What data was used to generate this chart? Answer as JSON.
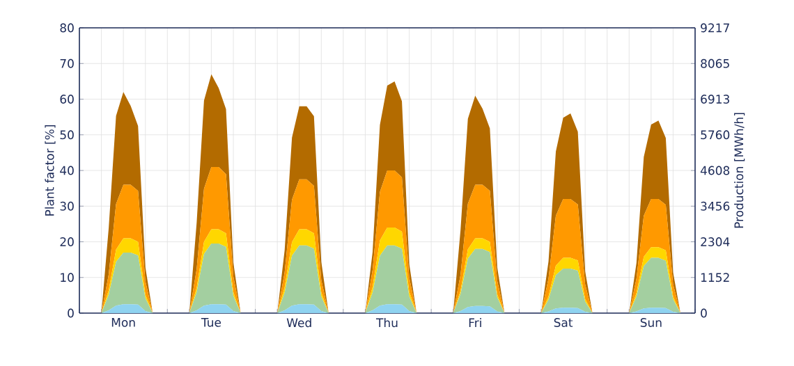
{
  "chart_data": {
    "type": "area",
    "stacked": true,
    "grid": true,
    "ylabel": "Plant factor [%]",
    "y2label": "Production [MWh/h]",
    "categories": [
      null,
      null,
      null,
      null,
      null,
      null,
      "Mon",
      null,
      null,
      null,
      null,
      null,
      null,
      null,
      null,
      null,
      null,
      null,
      "Tue",
      null,
      null,
      null,
      null,
      null,
      null,
      null,
      null,
      null,
      null,
      null,
      "Wed",
      null,
      null,
      null,
      null,
      null,
      null,
      null,
      null,
      null,
      null,
      null,
      "Thu",
      null,
      null,
      null,
      null,
      null,
      null,
      null,
      null,
      null,
      null,
      null,
      "Fri",
      null,
      null,
      null,
      null,
      null,
      null,
      null,
      null,
      null,
      null,
      null,
      "Sat",
      null,
      null,
      null,
      null,
      null,
      null,
      null,
      null,
      null,
      null,
      null,
      "Sun",
      null,
      null,
      null,
      null,
      null
    ],
    "ylim": [
      0,
      80
    ],
    "yticks": [
      0,
      10,
      20,
      30,
      40,
      50,
      60,
      70,
      80
    ],
    "y2lim": [
      0,
      9217
    ],
    "y2ticks": [
      0,
      1152,
      2304,
      3456,
      4608,
      5760,
      6913,
      8065,
      9217
    ],
    "series": [
      {
        "color": "#8fd3f0",
        "values": [
          0,
          0,
          0,
          0,
          0.8,
          2.1,
          2.5,
          2.5,
          2.4,
          0.6,
          0,
          0,
          0,
          0,
          0,
          0,
          0.8,
          2.1,
          2.5,
          2.5,
          2.4,
          0.6,
          0,
          0,
          0,
          0,
          0,
          0,
          0.8,
          2.1,
          2.5,
          2.5,
          2.4,
          0.6,
          0,
          0,
          0,
          0,
          0,
          0,
          0.8,
          2.1,
          2.5,
          2.5,
          2.4,
          0.6,
          0,
          0,
          0,
          0,
          0,
          0,
          0.6,
          1.7,
          2,
          2,
          1.9,
          0.5,
          0,
          0,
          0,
          0,
          0,
          0,
          0.5,
          1.3,
          1.5,
          1.5,
          1.4,
          0.4,
          0,
          0,
          0,
          0,
          0,
          0,
          0.5,
          1.3,
          1.5,
          1.5,
          1.4,
          0.4,
          0,
          0
        ]
      },
      {
        "color": "#a3cfa0",
        "values": [
          0,
          0,
          0,
          0,
          4.4,
          12.3,
          14.5,
          14.5,
          13.8,
          3.6,
          0,
          0,
          0,
          0,
          0,
          0,
          5.1,
          14.5,
          17,
          17,
          16.2,
          4.3,
          0,
          0,
          0,
          0,
          0,
          0,
          5,
          14,
          16.5,
          16.5,
          15.7,
          4.1,
          0,
          0,
          0,
          0,
          0,
          0,
          5,
          14,
          16.5,
          16.5,
          15.7,
          4.1,
          0,
          0,
          0,
          0,
          0,
          0,
          4.8,
          13.6,
          16,
          16,
          15.2,
          4,
          0,
          0,
          0,
          0,
          0,
          0,
          3.3,
          9.4,
          11,
          11,
          10.5,
          2.8,
          0,
          0,
          0,
          0,
          0,
          0,
          4.2,
          11.9,
          14,
          14,
          13.3,
          3.5,
          0,
          0
        ]
      },
      {
        "color": "#ffd700",
        "values": [
          0,
          0,
          0,
          0,
          1.2,
          3.4,
          4,
          4,
          3.8,
          1,
          0,
          0,
          0,
          0,
          0,
          0,
          1.2,
          3.4,
          4,
          4,
          3.8,
          1,
          0,
          0,
          0,
          0,
          0,
          0,
          1.4,
          3.8,
          4.5,
          4.5,
          4.3,
          1.1,
          0,
          0,
          0,
          0,
          0,
          0,
          1.5,
          4.3,
          5,
          5,
          4.8,
          1.3,
          0,
          0,
          0,
          0,
          0,
          0,
          0.9,
          2.6,
          3,
          3,
          2.9,
          0.8,
          0,
          0,
          0,
          0,
          0,
          0,
          0.9,
          2.6,
          3,
          3,
          2.9,
          0.8,
          0,
          0,
          0,
          0,
          0,
          0,
          0.9,
          2.6,
          3,
          3,
          2.9,
          0.8,
          0,
          0
        ]
      },
      {
        "color": "#ff9900",
        "values": [
          0,
          0,
          0,
          0,
          4.5,
          12.8,
          15,
          15,
          14.3,
          3.8,
          0,
          0,
          0,
          0,
          0,
          0,
          5.3,
          14.9,
          17.5,
          17.5,
          16.6,
          4.4,
          0,
          0,
          0,
          0,
          0,
          0,
          4.2,
          11.9,
          14,
          14,
          13.3,
          3.5,
          0,
          0,
          0,
          0,
          0,
          0,
          4.8,
          13.6,
          16,
          16,
          15.2,
          4,
          0,
          0,
          0,
          0,
          0,
          0,
          4.5,
          12.8,
          15,
          15,
          14.3,
          3.8,
          0,
          0,
          0,
          0,
          0,
          0,
          5,
          14,
          16.5,
          16.5,
          15.7,
          4.1,
          0,
          0,
          0,
          0,
          0,
          0,
          4.1,
          11.5,
          13.5,
          13.5,
          12.8,
          3.4,
          0,
          0
        ]
      },
      {
        "color": "#b36b00",
        "values": [
          0,
          0,
          0,
          0,
          13,
          24.7,
          26,
          22.1,
          18.2,
          3.9,
          0,
          0,
          0,
          0,
          0,
          0,
          13,
          24.7,
          26,
          22.1,
          18.2,
          3.9,
          0,
          0,
          0,
          0,
          0,
          0,
          6.2,
          17.4,
          20.5,
          20.5,
          19.5,
          5.1,
          0,
          0,
          0,
          0,
          0,
          0,
          5,
          18.8,
          23.8,
          25,
          21.3,
          3.8,
          0,
          0,
          0,
          0,
          0,
          0,
          12.5,
          23.8,
          25,
          21.3,
          17.5,
          3.8,
          0,
          0,
          0,
          0,
          0,
          0,
          4.8,
          18,
          22.8,
          24,
          20.4,
          3.6,
          0,
          0,
          0,
          0,
          0,
          0,
          4.4,
          16.5,
          20.9,
          22,
          18.7,
          3.3,
          0,
          0
        ]
      }
    ]
  }
}
